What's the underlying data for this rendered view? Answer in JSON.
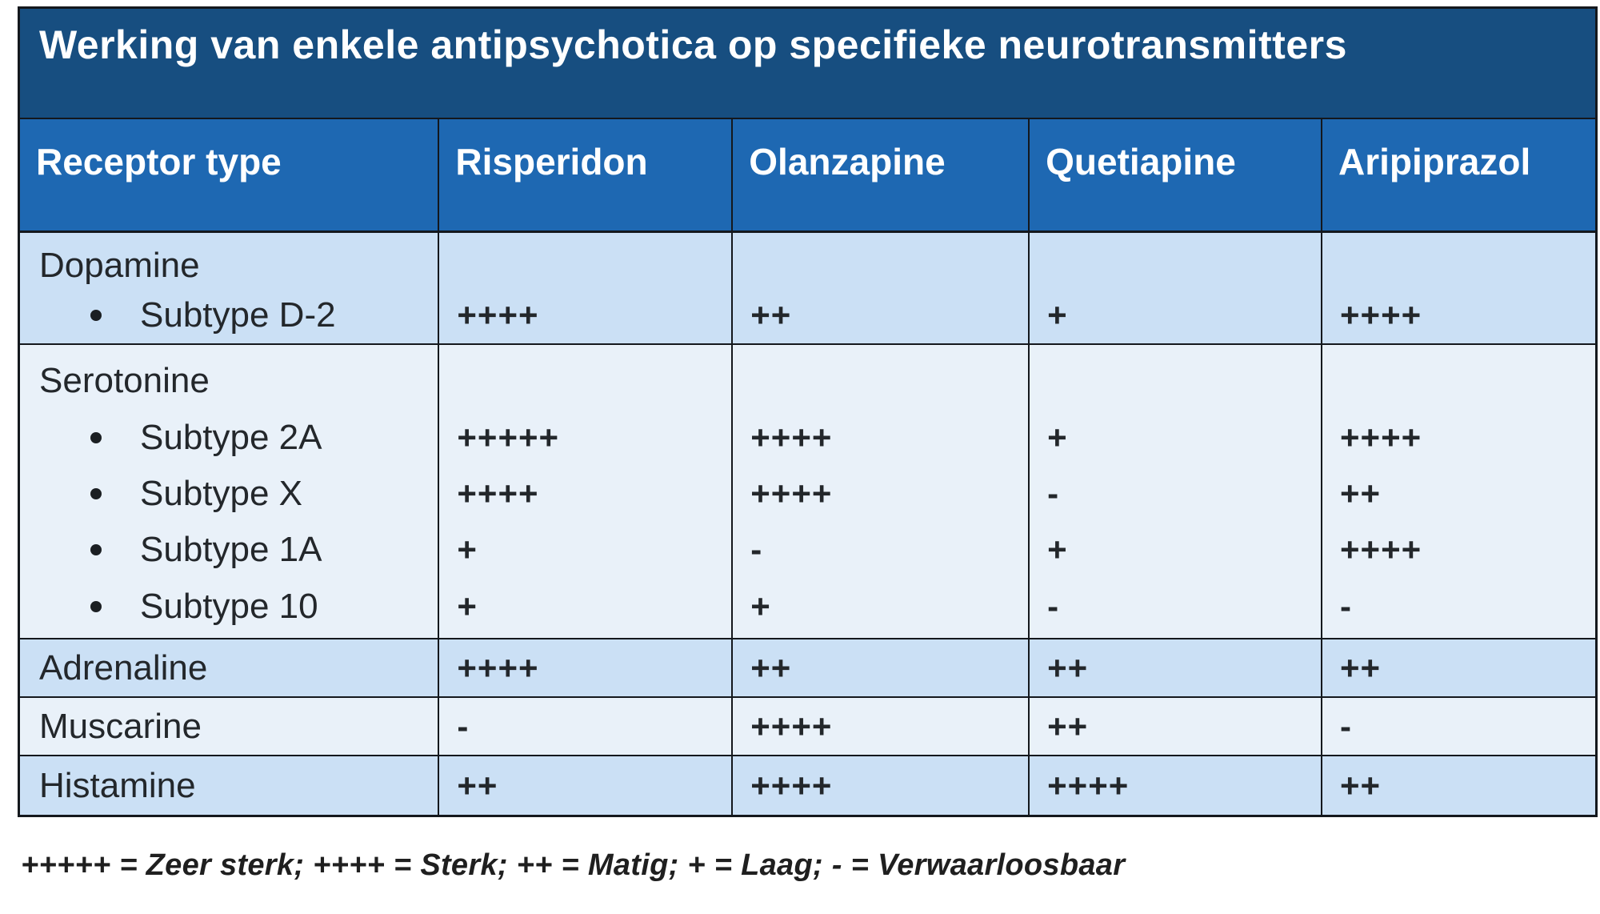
{
  "title": "Werking van enkele antipsychotica op specifieke neurotransmitters",
  "columns": [
    "Receptor type",
    "Risperidon",
    "Olanzapine",
    "Quetiapine",
    "Aripiprazol"
  ],
  "groups": [
    {
      "label": "Dopamine",
      "subtypes": [
        {
          "label": "Subtype D-2",
          "values": [
            "++++",
            "++",
            "+",
            "++++"
          ]
        }
      ]
    },
    {
      "label": "Serotonine",
      "subtypes": [
        {
          "label": "Subtype 2A",
          "values": [
            "+++++",
            "++++",
            "+",
            "++++"
          ]
        },
        {
          "label": "Subtype X",
          "values": [
            "++++",
            "++++",
            "-",
            "++"
          ]
        },
        {
          "label": "Subtype 1A",
          "values": [
            "+",
            "-",
            "+",
            "++++"
          ]
        },
        {
          "label": "Subtype 10",
          "values": [
            "+",
            "+",
            "-",
            "-"
          ]
        }
      ]
    }
  ],
  "rows": [
    {
      "label": "Adrenaline",
      "values": [
        "++++",
        "++",
        "++",
        "++"
      ]
    },
    {
      "label": "Muscarine",
      "values": [
        "-",
        "++++",
        "++",
        "-"
      ]
    },
    {
      "label": "Histamine",
      "values": [
        "++",
        "++++",
        "++++",
        "++"
      ]
    }
  ],
  "legend": "+++++ = Zeer sterk; ++++ = Sterk; ++ = Matig; + = Laag; - = Verwaarloosbaar",
  "colors": {
    "title_bg": "#174E80",
    "header_bg": "#1E68B2",
    "row_light": "#CBE0F5",
    "row_lighter": "#E9F1F9",
    "border": "#14181D",
    "text": "#23272B",
    "header_text": "#FFFFFF"
  }
}
